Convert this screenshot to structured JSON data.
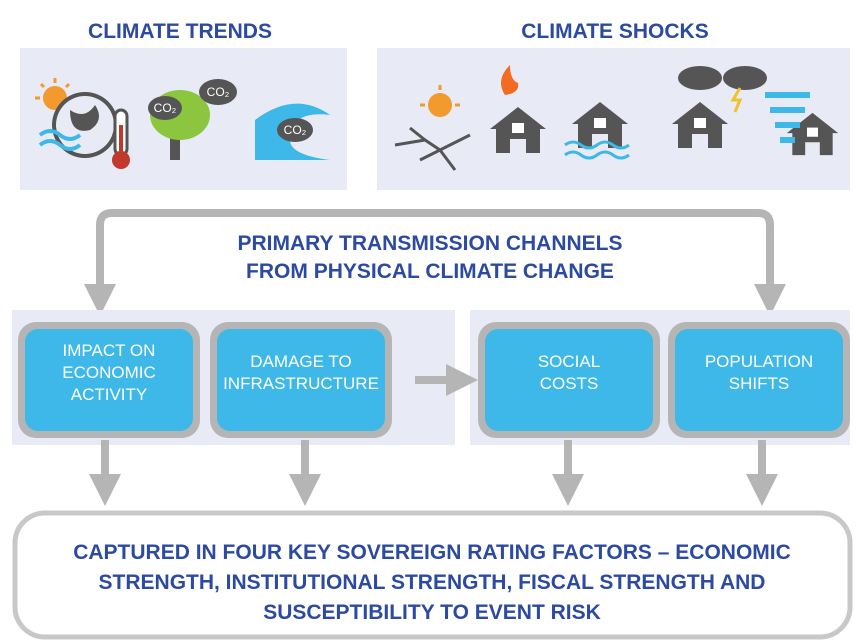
{
  "headings": {
    "trends": "CLIMATE TRENDS",
    "shocks": "CLIMATE SHOCKS"
  },
  "icon_labels": [
    "CO₂",
    "CO₂",
    "CO₂"
  ],
  "channels": {
    "title": [
      "PRIMARY TRANSMISSION CHANNELS",
      "FROM PHYSICAL CLIMATE CHANGE"
    ],
    "boxes": [
      {
        "lines": [
          "IMPACT ON",
          "ECONOMIC",
          "ACTIVITY"
        ]
      },
      {
        "lines": [
          "DAMAGE TO",
          "INFRASTRUCTURE"
        ]
      },
      {
        "lines": [
          "SOCIAL",
          "COSTS"
        ]
      },
      {
        "lines": [
          "POPULATION",
          "SHIFTS"
        ]
      }
    ]
  },
  "outcome": {
    "lines": [
      "CAPTURED IN FOUR KEY SOVEREIGN RATING FACTORS – ECONOMIC",
      "STRENGTH, INSTITUTIONAL STRENGTH, FISCAL STRENGTH AND",
      "SUSCEPTIBILITY TO EVENT RISK"
    ]
  }
}
